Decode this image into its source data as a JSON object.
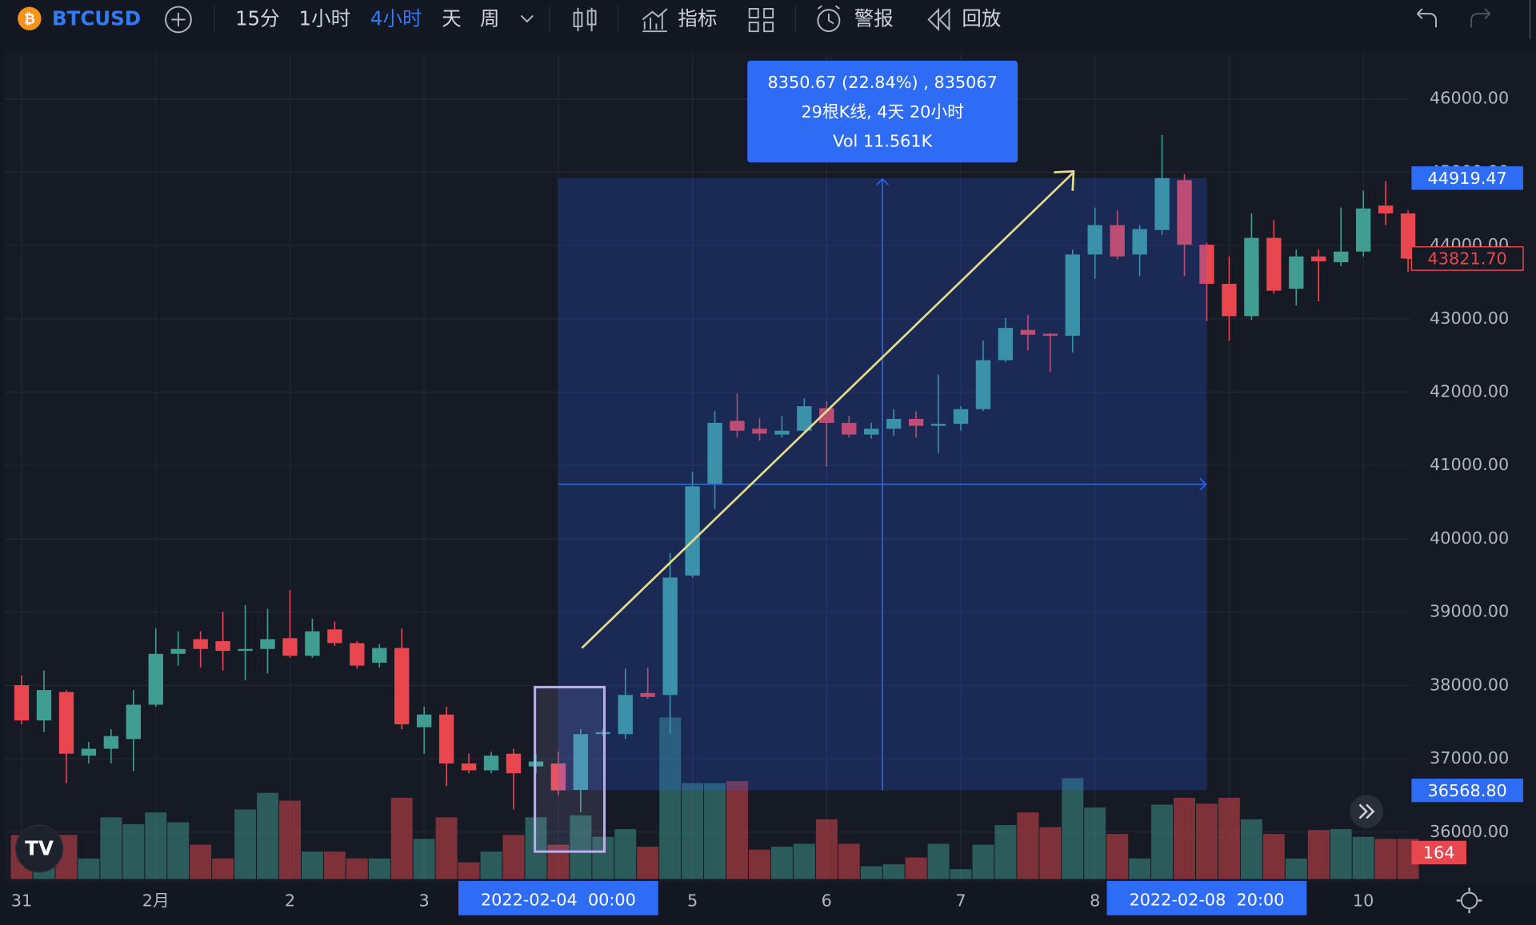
{
  "toolbar": {
    "symbol": "BTCUSD",
    "intervals": [
      "15分",
      "1小时",
      "4小时",
      "天",
      "周"
    ],
    "active_interval": 2,
    "tools": [
      "指标",
      "警报",
      "回放"
    ]
  },
  "chart_data": {
    "type": "candlestick",
    "categories": [
      "31",
      null,
      null,
      null,
      null,
      null,
      "2月",
      null,
      null,
      null,
      null,
      null,
      "2",
      null,
      null,
      null,
      null,
      null,
      "3",
      null,
      null,
      null,
      null,
      null,
      null,
      null,
      null,
      null,
      null,
      null,
      "5",
      null,
      null,
      null,
      null,
      null,
      "6",
      null,
      null,
      null,
      null,
      null,
      "7",
      null,
      null,
      null,
      null,
      null,
      "8",
      null,
      null,
      null,
      null,
      null,
      null,
      null,
      null,
      null,
      null,
      null,
      "10",
      null,
      null
    ],
    "open": [
      38003,
      37523,
      37910,
      37042,
      37136,
      37269,
      37737,
      38431,
      38631,
      38604,
      38471,
      38497,
      38644,
      38404,
      38764,
      38577,
      38310,
      38511,
      37430,
      37603,
      36936,
      36842,
      37069,
      36896,
      36936,
      36575,
      37336,
      37336,
      37897,
      37870,
      39499,
      40740,
      41608,
      41501,
      41421,
      41474,
      41781,
      41581,
      41421,
      41501,
      41635,
      41541,
      41568,
      41768,
      42436,
      42849,
      42796,
      42769,
      43877,
      44278,
      43877,
      44211,
      44892,
      44011,
      43477,
      43036,
      44104,
      43410,
      43851,
      43771,
      43917,
      44545,
      44438
    ],
    "high": [
      38137,
      38204,
      37937,
      37229,
      37403,
      37937,
      38778,
      38738,
      38738,
      39005,
      39098,
      39045,
      39298,
      38911,
      38871,
      38604,
      38564,
      38778,
      37710,
      37710,
      37069,
      37096,
      37136,
      37069,
      37096,
      37403,
      37403,
      38230,
      38244,
      39806,
      40914,
      41741,
      41982,
      41648,
      41675,
      41915,
      41875,
      41675,
      41581,
      41768,
      41741,
      42235,
      41808,
      42703,
      43010,
      43050,
      42809,
      43944,
      44518,
      44478,
      44278,
      45506,
      44972,
      44038,
      43851,
      44438,
      44345,
      43944,
      43944,
      44518,
      44745,
      44879,
      44478
    ],
    "low": [
      37470,
      37363,
      36668,
      36936,
      36936,
      36829,
      37710,
      38270,
      38244,
      38204,
      38070,
      38164,
      38377,
      38377,
      38537,
      38230,
      38244,
      37403,
      37069,
      36628,
      36802,
      36802,
      36308,
      36802,
      36508,
      36268,
      37309,
      37269,
      37817,
      37336,
      39472,
      40406,
      41381,
      41341,
      41381,
      41448,
      40980,
      41381,
      41368,
      41408,
      41381,
      41167,
      41474,
      41741,
      42409,
      42569,
      42275,
      42542,
      43544,
      43811,
      43584,
      44144,
      43584,
      42970,
      42703,
      42983,
      43343,
      43183,
      43237,
      43717,
      43851,
      44278,
      43637
    ],
    "close": [
      37523,
      37937,
      37069,
      37136,
      37309,
      37737,
      38431,
      38497,
      38497,
      38471,
      38497,
      38631,
      38404,
      38738,
      38577,
      38270,
      38511,
      37470,
      37603,
      36936,
      36842,
      37042,
      36802,
      36962,
      36568.8,
      37336,
      37363,
      37870,
      37843,
      39472,
      40714,
      41581,
      41474,
      41434,
      41474,
      41808,
      41581,
      41421,
      41501,
      41635,
      41541,
      41568,
      41768,
      42436,
      42876,
      42783,
      42769,
      43877,
      44278,
      43851,
      44224,
      44919.47,
      44011,
      43477,
      43036,
      44104,
      43383,
      43851,
      43784,
      43917,
      44505,
      44438,
      43821.7
    ],
    "volume": [
      180,
      84,
      180,
      84,
      252,
      224,
      272,
      232,
      140,
      84,
      284,
      352,
      320,
      112,
      112,
      84,
      84,
      332,
      164,
      252,
      68,
      112,
      180,
      252,
      140,
      260,
      172,
      204,
      132,
      660,
      392,
      392,
      400,
      120,
      132,
      144,
      244,
      144,
      52,
      60,
      88,
      144,
      40,
      140,
      220,
      272,
      212,
      412,
      292,
      184,
      84,
      304,
      332,
      308,
      332,
      244,
      184,
      84,
      200,
      204,
      172,
      164,
      164
    ],
    "up_color": "#3f9e91",
    "down_color": "#e8474f",
    "ylim": [
      35360,
      46614
    ],
    "yticks": [
      {
        "value": 46000,
        "label": "46000.00"
      },
      {
        "value": 45000,
        "label": "45000.00"
      },
      {
        "value": 44000,
        "label": "44000.00"
      },
      {
        "value": 43000,
        "label": "43000.00"
      },
      {
        "value": 42000,
        "label": "42000.00"
      },
      {
        "value": 41000,
        "label": "41000.00"
      },
      {
        "value": 40000,
        "label": "40000.00"
      },
      {
        "value": 39000,
        "label": "39000.00"
      },
      {
        "value": 38000,
        "label": "38000.00"
      },
      {
        "value": 37000,
        "label": "37000.00"
      },
      {
        "value": 36000,
        "label": "36000.00"
      }
    ],
    "grid": true,
    "last_price": {
      "value": 43821.7,
      "label": "43821.70"
    },
    "measure": {
      "start_bar": 24,
      "end_bar": 53,
      "from": {
        "value": 36568.8,
        "label": "36568.80"
      },
      "to": 44919.47,
      "start_label": "2022-02-04  00:00",
      "end_label": "2022-02-08  20:00",
      "lines": [
        "8350.67 (22.84%) , 835067",
        "29根K线, 4天 20小时",
        "Vol 11.561K"
      ]
    }
  }
}
